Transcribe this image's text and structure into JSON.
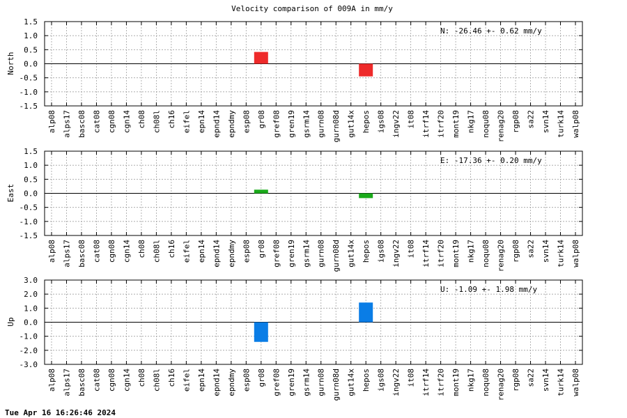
{
  "footer": {
    "timestamp": "Tue Apr 16 16:26:46 2024"
  },
  "chart_data": {
    "type": "bar",
    "title": "Velocity comparison of 009A in mm/y",
    "categories": [
      "alp08",
      "alps17",
      "basc08",
      "cat08",
      "cgn08",
      "cgn14",
      "ch08",
      "ch08l",
      "ch16",
      "eifel",
      "epn14",
      "epnd14",
      "epndmy",
      "esp08",
      "gr08",
      "gref08",
      "gren19",
      "gsrm14",
      "gurn08",
      "gurn08d",
      "gut14x",
      "hepos",
      "igs08",
      "ingv22",
      "it08",
      "itrf14",
      "itrf20",
      "mont19",
      "nkg17",
      "noqu08",
      "renag20",
      "rgp08",
      "sa22",
      "svn14",
      "turk14",
      "walp08"
    ],
    "grid": true,
    "panels": [
      {
        "ylabel": "North",
        "ylim": [
          -1.5,
          1.5
        ],
        "yticks": [
          "1.5",
          "1.0",
          "0.5",
          "0.0",
          "-0.5",
          "-1.0",
          "-1.5"
        ],
        "tick_values": [
          1.5,
          1.0,
          0.5,
          0.0,
          -0.5,
          -1.0,
          -1.5
        ],
        "color": "#ee2a2a",
        "annotation": "N: -26.46 +-  0.62 mm/y",
        "values": {
          "gr08": 0.42,
          "hepos": -0.45
        }
      },
      {
        "ylabel": "East",
        "ylim": [
          -1.5,
          1.5
        ],
        "yticks": [
          "1.5",
          "1.0",
          "0.5",
          "0.0",
          "-0.5",
          "-1.0",
          "-1.5"
        ],
        "tick_values": [
          1.5,
          1.0,
          0.5,
          0.0,
          -0.5,
          -1.0,
          -1.5
        ],
        "color": "#1aaa1a",
        "annotation": "E: -17.36 +-  0.20 mm/y",
        "values": {
          "gr08": 0.13,
          "hepos": -0.17
        }
      },
      {
        "ylabel": "Up",
        "ylim": [
          -3.0,
          3.0
        ],
        "yticks": [
          "3.0",
          "2.0",
          "1.0",
          "0.0",
          "-1.0",
          "-2.0",
          "-3.0"
        ],
        "tick_values": [
          3.0,
          2.0,
          1.0,
          0.0,
          -1.0,
          -2.0,
          -3.0
        ],
        "color": "#0a7de6",
        "annotation": "U:  -1.09 +-  1.98 mm/y",
        "values": {
          "gr08": -1.4,
          "hepos": 1.4
        }
      }
    ]
  }
}
